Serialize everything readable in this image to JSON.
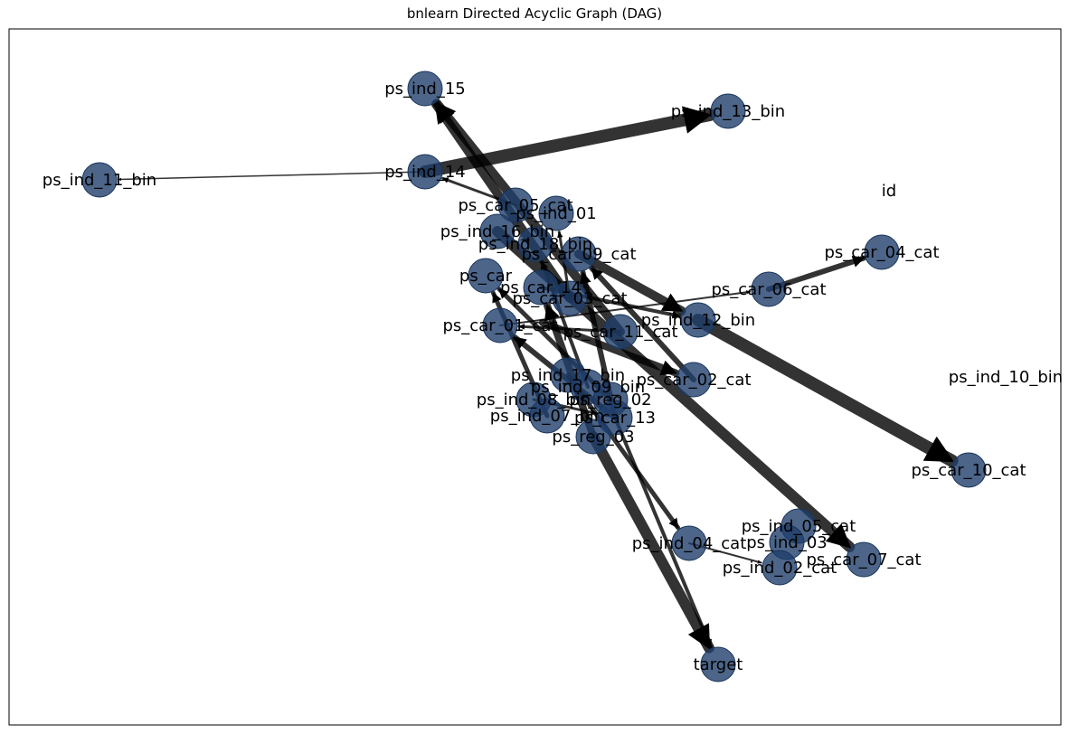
{
  "title": "bnlearn Directed Acyclic Graph (DAG)",
  "colors": {
    "node": "#1f3f6b",
    "node_stroke": "#1a355b",
    "edge": "#000000",
    "frame": "#000000"
  },
  "nodes": [
    {
      "id": "ps_ind_15",
      "label": "ps_ind_15"
    },
    {
      "id": "ps_ind_13_bin",
      "label": "ps_ind_13_bin"
    },
    {
      "id": "ps_ind_14",
      "label": "ps_ind_14"
    },
    {
      "id": "ps_ind_11_bin",
      "label": "ps_ind_11_bin"
    },
    {
      "id": "id",
      "label": "id"
    },
    {
      "id": "ps_car_05_cat",
      "label": "ps_car_05_cat"
    },
    {
      "id": "ps_ind_01",
      "label": "ps_ind_01"
    },
    {
      "id": "ps_ind_16_bin",
      "label": "ps_ind_16_bin"
    },
    {
      "id": "ps_ind_18_bin",
      "label": "ps_ind_18_bin"
    },
    {
      "id": "ps_car_09_cat",
      "label": "ps_car_09_cat"
    },
    {
      "id": "ps_car_04_cat",
      "label": "ps_car_04_cat"
    },
    {
      "id": "ps_car",
      "label": "ps_car"
    },
    {
      "id": "ps_car_06_cat",
      "label": "ps_car_06_cat"
    },
    {
      "id": "ps_car_14",
      "label": "ps_car_14"
    },
    {
      "id": "ps_car_03_cat",
      "label": "ps_car_03_cat"
    },
    {
      "id": "ps_ind_12_bin",
      "label": "ps_ind_12_bin"
    },
    {
      "id": "ps_car_01_cat",
      "label": "ps_car_01_cat"
    },
    {
      "id": "ps_car_11_cat",
      "label": "ps_car_11_cat"
    },
    {
      "id": "ps_ind_10_bin",
      "label": "ps_ind_10_bin"
    },
    {
      "id": "ps_ind_17_bin",
      "label": "ps_ind_17_bin"
    },
    {
      "id": "ps_car_02_cat",
      "label": "ps_car_02_cat"
    },
    {
      "id": "ps_ind_09_bin",
      "label": "ps_ind_09_bin"
    },
    {
      "id": "ps_reg_02",
      "label": "ps_reg_02"
    },
    {
      "id": "ps_ind_08_bin",
      "label": "ps_ind_08_bin"
    },
    {
      "id": "ps_ind_07_bin",
      "label": "ps_ind_07_bin"
    },
    {
      "id": "ps_car_13",
      "label": "ps_car_13"
    },
    {
      "id": "ps_reg_03",
      "label": "ps_reg_03"
    },
    {
      "id": "ps_car_10_cat",
      "label": "ps_car_10_cat"
    },
    {
      "id": "ps_ind_05_cat",
      "label": "ps_ind_05_cat"
    },
    {
      "id": "ps_ind_04_cat",
      "label": "ps_ind_04_cat"
    },
    {
      "id": "ps_ind_03",
      "label": "ps_ind_03"
    },
    {
      "id": "ps_car_07_cat",
      "label": "ps_car_07_cat"
    },
    {
      "id": "ps_ind_02_cat",
      "label": "ps_ind_02_cat"
    },
    {
      "id": "target",
      "label": "target"
    }
  ],
  "edges": [
    {
      "from": "ps_ind_14",
      "to": "ps_ind_13_bin",
      "weight": 14
    },
    {
      "from": "ps_ind_14",
      "to": "ps_ind_11_bin",
      "weight": 1.5
    },
    {
      "from": "ps_car_03_cat",
      "to": "ps_ind_15",
      "weight": 10
    },
    {
      "from": "ps_car_11_cat",
      "to": "ps_ind_15",
      "weight": 10
    },
    {
      "from": "ps_car_05_cat",
      "to": "ps_ind_14",
      "weight": 3
    },
    {
      "from": "ps_car_09_cat",
      "to": "ps_ind_12_bin",
      "weight": 10
    },
    {
      "from": "ps_car_14",
      "to": "ps_ind_12_bin",
      "weight": 4
    },
    {
      "from": "ps_ind_12_bin",
      "to": "ps_car_10_cat",
      "weight": 14
    },
    {
      "from": "ps_car_06_cat",
      "to": "ps_car_04_cat",
      "weight": 6
    },
    {
      "from": "ps_car_01_cat",
      "to": "ps_car_06_cat",
      "weight": 2
    },
    {
      "from": "ps_ind_16_bin",
      "to": "ps_car_07_cat",
      "weight": 12
    },
    {
      "from": "ps_car_01",
      "to": "ps_car_02_cat",
      "weight": 8
    },
    {
      "from": "ps_reg_03",
      "to": "target",
      "weight": 12
    },
    {
      "from": "ps_car_13",
      "to": "target",
      "weight": 4
    },
    {
      "from": "ps_ind_17_bin",
      "to": "ps_ind_04_cat",
      "weight": 5
    },
    {
      "from": "ps_ind_04_cat",
      "to": "ps_ind_02_cat",
      "weight": 2
    },
    {
      "from": "ps_reg_03",
      "to": "ps_car_14",
      "weight": 8
    },
    {
      "from": "ps_car_13",
      "to": "ps_car_01_cat",
      "weight": 6
    },
    {
      "from": "ps_car_13",
      "to": "ps_car_09_cat",
      "weight": 6
    },
    {
      "from": "ps_ind_07_bin",
      "to": "ps_car",
      "weight": 5
    },
    {
      "from": "ps_car_02_cat",
      "to": "ps_car_09_cat",
      "weight": 6
    },
    {
      "from": "ps_reg_02",
      "to": "ps_car",
      "weight": 5
    },
    {
      "from": "ps_ind_09_bin",
      "to": "ps_ind_18_bin",
      "weight": 4
    },
    {
      "from": "ps_car_03_cat",
      "to": "ps_ind_01",
      "weight": 3
    },
    {
      "from": "ps_ind_08_bin",
      "to": "ps_car_13",
      "weight": 3
    },
    {
      "from": "ps_car_11_cat",
      "to": "ps_car_01_cat",
      "weight": 3
    }
  ]
}
